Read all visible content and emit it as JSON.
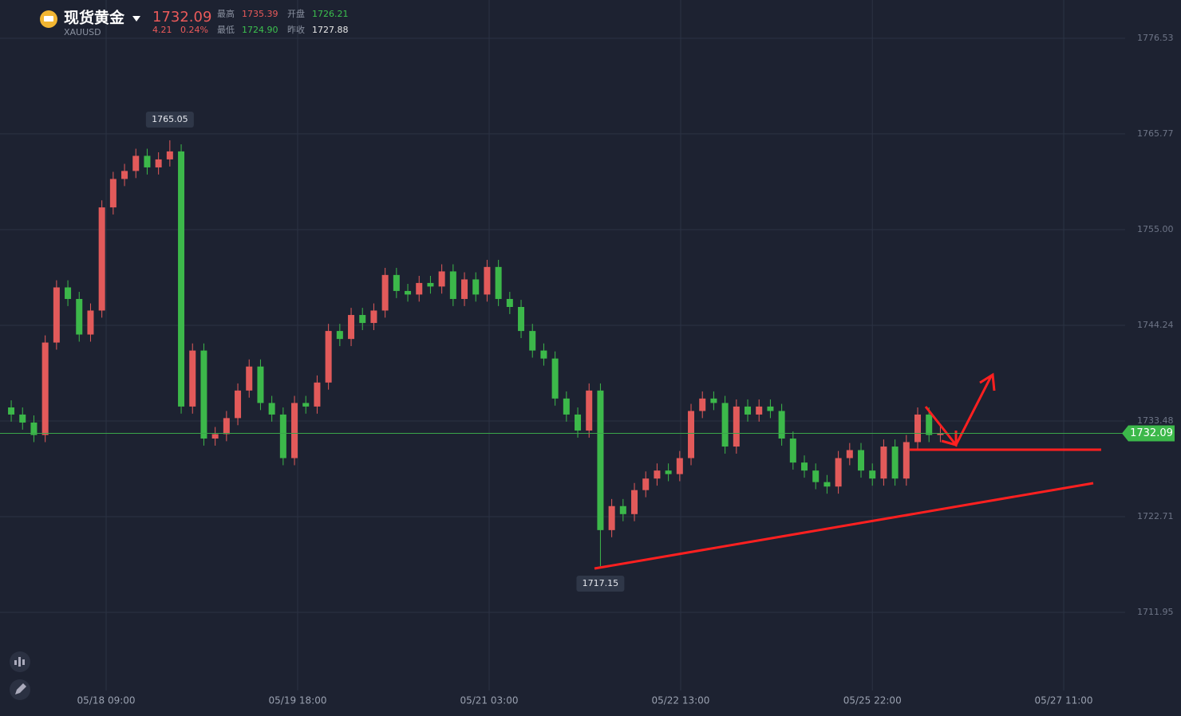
{
  "header": {
    "name": "现货黄金",
    "symbol": "XAUUSD",
    "price": "1732.09",
    "change": "4.21",
    "change_pct": "0.24%",
    "high_label": "最高",
    "high": "1735.39",
    "open_label": "开盘",
    "open": "1726.21",
    "low_label": "最低",
    "low": "1724.90",
    "prev_close_label": "昨收",
    "prev_close": "1727.88"
  },
  "chart_data": {
    "type": "candlestick",
    "up_color": "#e25a5a",
    "down_color": "#3cb84a",
    "grid": true,
    "ylim": [
      1703.16,
      1780.83
    ],
    "yticks": [
      1776.53,
      1765.77,
      {
        "value": 1755,
        "label": "1755.00"
      },
      1744.24,
      1733.48,
      1722.71,
      1711.95
    ],
    "xlim": [
      -0.99,
      98.31
    ],
    "xticks": [
      {
        "value": 8.38,
        "label": "05/18 09:00"
      },
      {
        "value": 25.28,
        "label": "05/19 18:00"
      },
      {
        "value": 42.18,
        "label": "05/21 03:00"
      },
      {
        "value": 59.08,
        "label": "05/22 13:00"
      },
      {
        "value": 76.0,
        "label": "05/25 22:00"
      },
      {
        "value": 92.89,
        "label": "05/27 11:00"
      }
    ],
    "open": [
      1735.0,
      1734.2,
      1733.3,
      1731.9,
      1742.3,
      1748.5,
      1747.2,
      1743.2,
      1745.9,
      1757.5,
      1760.7,
      1761.6,
      1763.3,
      1762.0,
      1762.9,
      1763.8,
      1735.1,
      1741.4,
      1731.5,
      1732.0,
      1733.8,
      1736.9,
      1739.6,
      1735.5,
      1734.2,
      1729.3,
      1735.5,
      1735.1,
      1737.8,
      1743.6,
      1742.7,
      1745.4,
      1744.5,
      1745.9,
      1749.9,
      1748.1,
      1747.7,
      1749.0,
      1748.6,
      1750.3,
      1747.2,
      1749.4,
      1747.7,
      1750.8,
      1747.2,
      1746.3,
      1743.6,
      1741.4,
      1740.5,
      1736.0,
      1734.2,
      1732.4,
      1736.9,
      1721.2,
      1723.9,
      1723.0,
      1725.7,
      1727.0,
      1727.9,
      1727.5,
      1729.3,
      1734.6,
      1736.0,
      1735.5,
      1730.6,
      1735.1,
      1734.2,
      1735.1,
      1734.6,
      1731.5,
      1728.8,
      1727.9,
      1726.6,
      1726.1,
      1729.3,
      1730.2,
      1727.9,
      1727.0,
      1730.6,
      1727.0,
      1731.1,
      1734.2,
      1731.9
    ],
    "close": [
      1734.2,
      1733.3,
      1731.9,
      1742.3,
      1748.5,
      1747.2,
      1743.2,
      1745.9,
      1757.5,
      1760.7,
      1761.6,
      1763.3,
      1762.0,
      1762.9,
      1763.8,
      1735.1,
      1741.4,
      1731.5,
      1732.0,
      1733.8,
      1736.9,
      1739.6,
      1735.5,
      1734.2,
      1729.3,
      1735.5,
      1735.1,
      1737.8,
      1743.6,
      1742.7,
      1745.4,
      1744.5,
      1745.9,
      1749.9,
      1748.1,
      1747.7,
      1749.0,
      1748.6,
      1750.3,
      1747.2,
      1749.4,
      1747.7,
      1750.8,
      1747.2,
      1746.3,
      1743.6,
      1741.4,
      1740.5,
      1736.0,
      1734.2,
      1732.4,
      1736.9,
      1721.2,
      1723.9,
      1723.0,
      1725.7,
      1727.0,
      1727.9,
      1727.5,
      1729.3,
      1734.6,
      1736.0,
      1735.5,
      1730.6,
      1735.1,
      1734.2,
      1735.1,
      1734.6,
      1731.5,
      1728.8,
      1727.9,
      1726.6,
      1726.1,
      1729.3,
      1730.2,
      1727.9,
      1727.0,
      1730.6,
      1727.0,
      1731.1,
      1734.2,
      1731.9,
      1732.09
    ],
    "high": [
      1735.8,
      1735.0,
      1734.1,
      1743.1,
      1749.3,
      1749.3,
      1748.0,
      1746.7,
      1758.3,
      1761.5,
      1762.4,
      1764.1,
      1764.1,
      1763.7,
      1765.05,
      1764.6,
      1742.2,
      1742.2,
      1732.8,
      1734.6,
      1737.7,
      1740.4,
      1740.4,
      1736.3,
      1735.0,
      1736.3,
      1736.3,
      1738.6,
      1744.4,
      1744.4,
      1746.2,
      1746.2,
      1746.7,
      1750.7,
      1750.7,
      1748.9,
      1749.8,
      1749.8,
      1751.1,
      1751.1,
      1750.2,
      1750.2,
      1751.6,
      1751.6,
      1748.0,
      1747.1,
      1744.4,
      1742.2,
      1741.3,
      1736.8,
      1735.0,
      1737.7,
      1737.7,
      1724.7,
      1724.7,
      1726.5,
      1727.8,
      1728.7,
      1728.7,
      1730.1,
      1735.4,
      1736.8,
      1736.8,
      1736.3,
      1735.9,
      1735.9,
      1735.9,
      1735.9,
      1735.4,
      1732.3,
      1729.6,
      1728.7,
      1727.4,
      1730.1,
      1731.0,
      1731.0,
      1728.7,
      1731.4,
      1731.4,
      1731.9,
      1735.0,
      1735.0,
      1732.9
    ],
    "low": [
      1733.4,
      1732.5,
      1731.1,
      1731.1,
      1741.5,
      1746.4,
      1742.4,
      1742.4,
      1745.1,
      1756.7,
      1759.9,
      1760.8,
      1761.2,
      1761.2,
      1762.1,
      1734.3,
      1734.3,
      1730.7,
      1730.7,
      1731.2,
      1733.0,
      1736.1,
      1734.7,
      1733.4,
      1728.5,
      1728.5,
      1734.3,
      1734.3,
      1737.0,
      1741.9,
      1741.9,
      1743.7,
      1743.7,
      1745.1,
      1747.3,
      1746.9,
      1746.9,
      1747.8,
      1747.8,
      1746.4,
      1746.4,
      1746.9,
      1746.9,
      1746.4,
      1745.5,
      1742.8,
      1740.6,
      1739.7,
      1735.2,
      1733.4,
      1731.6,
      1731.6,
      1717.15,
      1720.4,
      1722.2,
      1722.2,
      1724.9,
      1726.2,
      1726.7,
      1726.7,
      1728.5,
      1733.8,
      1734.7,
      1729.8,
      1729.8,
      1733.4,
      1733.4,
      1733.8,
      1730.7,
      1728.0,
      1727.1,
      1725.8,
      1725.3,
      1725.3,
      1728.5,
      1727.1,
      1726.2,
      1726.2,
      1726.2,
      1726.2,
      1730.3,
      1731.1,
      1731.1
    ]
  }
}
